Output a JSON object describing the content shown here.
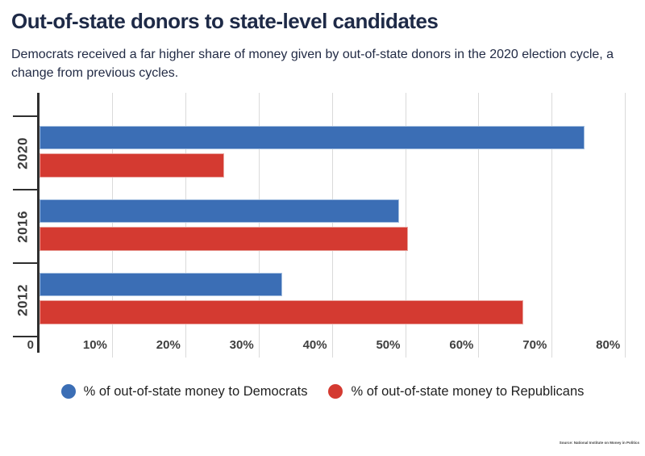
{
  "page": {
    "title": "Out-of-state donors to state-level candidates",
    "subtitle": "Democrats received a far higher share of money given by out-of-state donors in the 2020 election cycle, a change from previous cycles.",
    "source": "Source: National Institute on Money in Politics"
  },
  "colors": {
    "democrat_blue": "#3b6eb5",
    "republican_red": "#d43a31",
    "gridline": "#dadada",
    "axis": "#2f2f2f",
    "title_text": "#1e2a47",
    "body_text": "#222b45",
    "tick_label": "#3f3f3f",
    "year_label": "#3a3a3a"
  },
  "chart_data": {
    "type": "bar",
    "orientation": "horizontal",
    "title": "Out-of-state donors to state-level candidates",
    "xlabel": "",
    "ylabel": "",
    "grid": true,
    "legend_position": "bottom",
    "xlim": [
      0,
      82
    ],
    "categories": [
      "2020",
      "2016",
      "2012"
    ],
    "series": [
      {
        "name": "% of out-of-state money to Democrats",
        "color": "#3b6eb5",
        "border_color": "#a3bedf",
        "values": [
          74.4,
          49.1,
          33.2
        ]
      },
      {
        "name": "% of out-of-state money to Republicans",
        "color": "#d43a31",
        "border_color": "#e9a49e",
        "values": [
          25.2,
          50.3,
          66.1
        ]
      }
    ],
    "x_ticks": [
      {
        "value": 0,
        "label": "0"
      },
      {
        "value": 10,
        "label": "10%"
      },
      {
        "value": 20,
        "label": "20%"
      },
      {
        "value": 30,
        "label": "30%"
      },
      {
        "value": 40,
        "label": "40%"
      },
      {
        "value": 50,
        "label": "50%"
      },
      {
        "value": 60,
        "label": "60%"
      },
      {
        "value": 70,
        "label": "70%"
      },
      {
        "value": 80,
        "label": "80%"
      }
    ]
  }
}
